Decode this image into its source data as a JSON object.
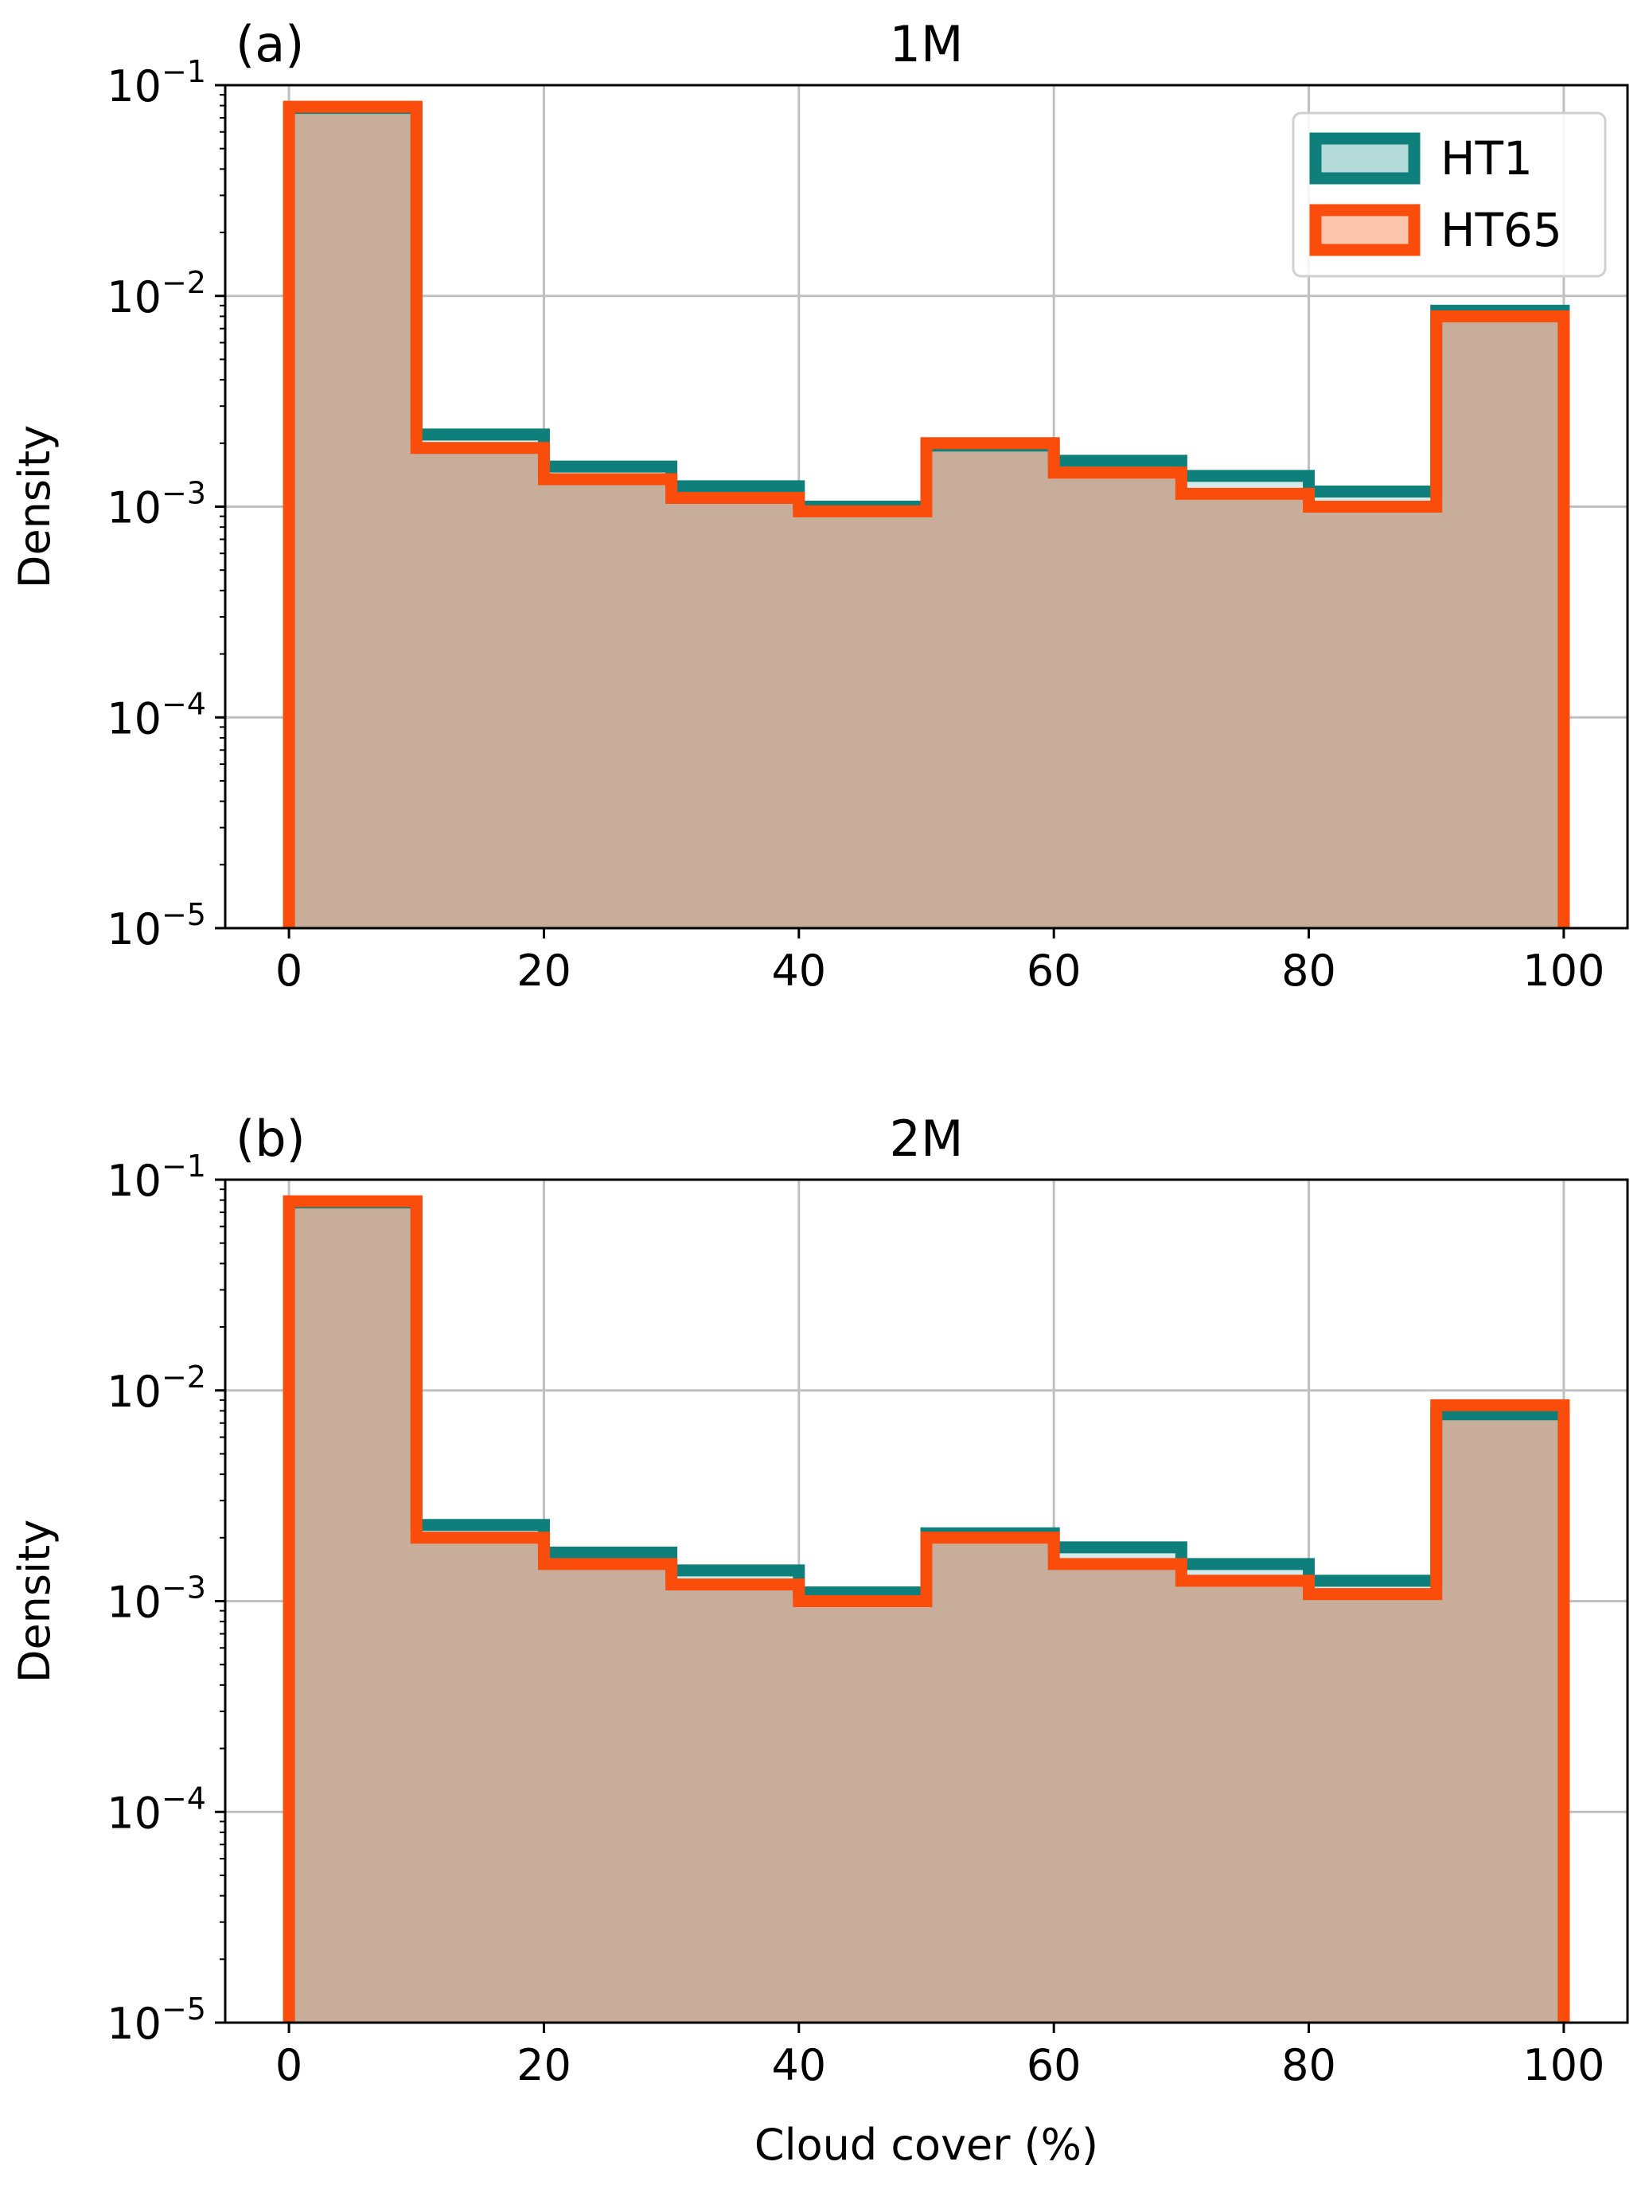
{
  "chart_data": [
    {
      "type": "histogram",
      "panel_label": "(a)",
      "title": "1M",
      "xlabel": "",
      "ylabel": "Density",
      "xlim": [
        -5,
        105
      ],
      "ylim": [
        1e-05,
        0.1
      ],
      "yscale": "log",
      "grid": true,
      "legend_position": "top-right",
      "bin_edges": [
        0,
        10,
        20,
        30,
        40,
        50,
        60,
        70,
        80,
        90,
        100
      ],
      "x_ticks": [
        {
          "value": 0,
          "label": "0"
        },
        {
          "value": 20,
          "label": "20"
        },
        {
          "value": 40,
          "label": "40"
        },
        {
          "value": 60,
          "label": "60"
        },
        {
          "value": 80,
          "label": "80"
        },
        {
          "value": 100,
          "label": "100"
        }
      ],
      "y_ticks": [
        {
          "value": 0.1,
          "base": "10",
          "exp": "−1"
        },
        {
          "value": 0.01,
          "base": "10",
          "exp": "−2"
        },
        {
          "value": 0.001,
          "base": "10",
          "exp": "−3"
        },
        {
          "value": 0.0001,
          "base": "10",
          "exp": "−4"
        },
        {
          "value": 1e-05,
          "base": "10",
          "exp": "−5"
        }
      ],
      "series": [
        {
          "name": "HT1",
          "edge_color": "#0e7f7b",
          "fill_color": "#b3dad8",
          "values": [
            0.078,
            0.0022,
            0.00155,
            0.00125,
            0.001,
            0.00195,
            0.00165,
            0.0014,
            0.00118,
            0.0085
          ]
        },
        {
          "name": "HT65",
          "edge_color": "#fa4d0c",
          "fill_color": "#fcc6ac",
          "values": [
            0.079,
            0.0019,
            0.00135,
            0.0011,
            0.00095,
            0.002,
            0.00145,
            0.00115,
            0.001,
            0.008
          ]
        }
      ]
    },
    {
      "type": "histogram",
      "panel_label": "(b)",
      "title": "2M",
      "xlabel": "Cloud cover (%)",
      "ylabel": "Density",
      "xlim": [
        -5,
        105
      ],
      "ylim": [
        1e-05,
        0.1
      ],
      "yscale": "log",
      "grid": true,
      "bin_edges": [
        0,
        10,
        20,
        30,
        40,
        50,
        60,
        70,
        80,
        90,
        100
      ],
      "x_ticks": [
        {
          "value": 0,
          "label": "0"
        },
        {
          "value": 20,
          "label": "20"
        },
        {
          "value": 40,
          "label": "40"
        },
        {
          "value": 60,
          "label": "60"
        },
        {
          "value": 80,
          "label": "80"
        },
        {
          "value": 100,
          "label": "100"
        }
      ],
      "y_ticks": [
        {
          "value": 0.1,
          "base": "10",
          "exp": "−1"
        },
        {
          "value": 0.01,
          "base": "10",
          "exp": "−2"
        },
        {
          "value": 0.001,
          "base": "10",
          "exp": "−3"
        },
        {
          "value": 0.0001,
          "base": "10",
          "exp": "−4"
        },
        {
          "value": 1e-05,
          "base": "10",
          "exp": "−5"
        }
      ],
      "series": [
        {
          "name": "HT1",
          "edge_color": "#0e7f7b",
          "fill_color": "#b3dad8",
          "values": [
            0.078,
            0.0023,
            0.0017,
            0.0014,
            0.0011,
            0.0021,
            0.0018,
            0.0015,
            0.00125,
            0.0077
          ]
        },
        {
          "name": "HT65",
          "edge_color": "#fa4d0c",
          "fill_color": "#fcc6ac",
          "values": [
            0.079,
            0.002,
            0.0015,
            0.0012,
            0.001,
            0.002,
            0.0015,
            0.00125,
            0.00108,
            0.0085
          ]
        }
      ]
    }
  ],
  "colors": {
    "overlap_fill": "#c7ad9a",
    "grid": "#c0c0c0",
    "axis": "#000000"
  }
}
